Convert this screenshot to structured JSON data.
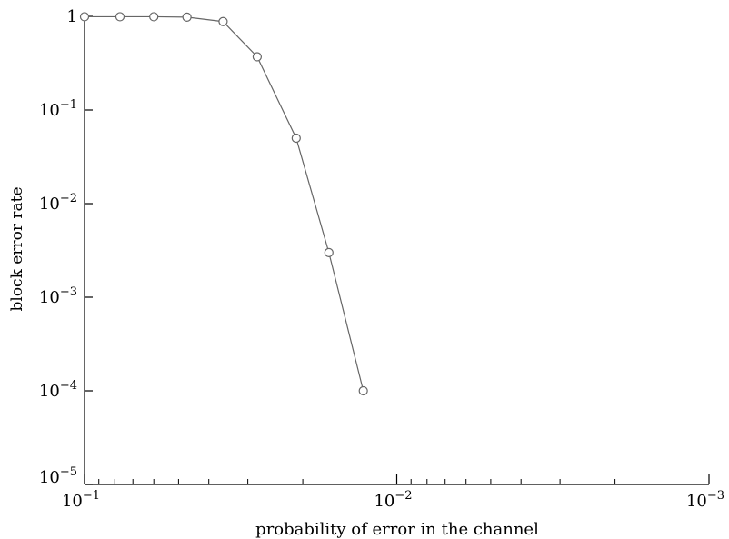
{
  "chart_data": {
    "type": "line",
    "title": "",
    "xlabel": "probability of error in the channel",
    "ylabel": "block error rate",
    "x_scale": "log",
    "y_scale": "log",
    "x_reversed": true,
    "xlim": [
      0.1,
      0.001
    ],
    "ylim": [
      1e-05,
      1
    ],
    "grid": false,
    "legend": "none",
    "line_color": "#666666",
    "x_ticks": [
      {
        "value": 0.1,
        "base": "10",
        "exp": "−1"
      },
      {
        "value": 0.01,
        "base": "10",
        "exp": "−2"
      },
      {
        "value": 0.001,
        "base": "10",
        "exp": "−3"
      }
    ],
    "y_ticks": [
      {
        "value": 1,
        "base": "1",
        "exp": ""
      },
      {
        "value": 0.1,
        "base": "10",
        "exp": "−1"
      },
      {
        "value": 0.01,
        "base": "10",
        "exp": "−2"
      },
      {
        "value": 0.001,
        "base": "10",
        "exp": "−3"
      },
      {
        "value": 0.0001,
        "base": "10",
        "exp": "−4"
      },
      {
        "value": 1e-05,
        "base": "10",
        "exp": "−5"
      }
    ],
    "series": [
      {
        "marker": "open-circle",
        "points": [
          {
            "x": 0.1,
            "y": 0.99
          },
          {
            "x": 0.077,
            "y": 0.99
          },
          {
            "x": 0.06,
            "y": 0.99
          },
          {
            "x": 0.047,
            "y": 0.98
          },
          {
            "x": 0.036,
            "y": 0.88
          },
          {
            "x": 0.028,
            "y": 0.37
          },
          {
            "x": 0.021,
            "y": 0.05
          },
          {
            "x": 0.0165,
            "y": 0.003
          },
          {
            "x": 0.0128,
            "y": 0.0001
          }
        ]
      }
    ]
  }
}
